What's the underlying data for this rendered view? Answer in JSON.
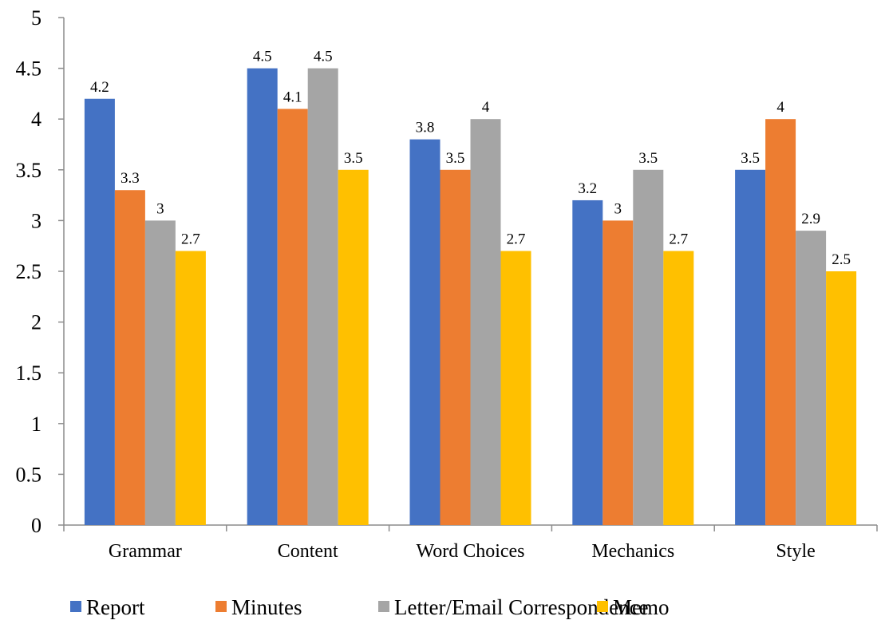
{
  "chart_data": {
    "type": "bar",
    "categories": [
      "Grammar",
      "Content",
      "Word Choices",
      "Mechanics",
      "Style"
    ],
    "series": [
      {
        "name": "Report",
        "color": "#4472C4",
        "values": [
          4.2,
          4.5,
          3.8,
          3.2,
          3.5
        ]
      },
      {
        "name": "Minutes",
        "color": "#ED7D31",
        "values": [
          3.3,
          4.1,
          3.5,
          3.0,
          4.0
        ]
      },
      {
        "name": "Letter/Email Correspondence",
        "color": "#A5A5A5",
        "values": [
          3.0,
          4.5,
          4.0,
          3.5,
          2.9
        ]
      },
      {
        "name": "Memo",
        "color": "#FFC000",
        "values": [
          2.7,
          3.5,
          2.7,
          2.7,
          2.5
        ]
      }
    ],
    "data_labels": [
      [
        "4.2",
        "4.5",
        "3.8",
        "3.2",
        "3.5"
      ],
      [
        "3.3",
        "4.1",
        "3.5",
        "3",
        "4"
      ],
      [
        "3",
        "4.5",
        "4",
        "3.5",
        "2.9"
      ],
      [
        "2.7",
        "3.5",
        "2.7",
        "2.7",
        "2.5"
      ]
    ],
    "yticks": [
      "0",
      "0.5",
      "1",
      "1.5",
      "2",
      "2.5",
      "3",
      "3.5",
      "4",
      "4.5",
      "5"
    ],
    "ylim": [
      0,
      5
    ],
    "grid": false,
    "legend_position": "bottom"
  }
}
